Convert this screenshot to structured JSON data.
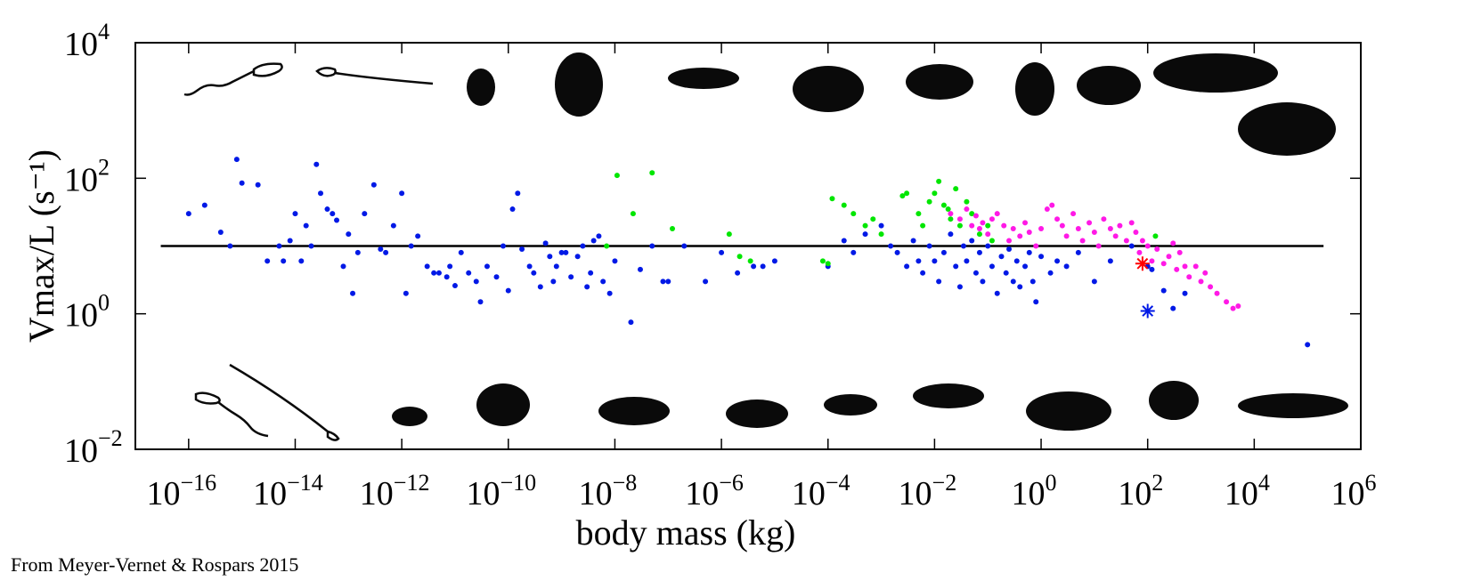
{
  "credit": "From Meyer-Vernet & Rospars 2015",
  "chart_data": {
    "type": "scatter",
    "xlabel": "body mass (kg)",
    "ylabel": "Vmax/L (s⁻¹)",
    "x_scale": "log",
    "y_scale": "log",
    "xlim": [
      1e-17,
      1000000.0
    ],
    "ylim": [
      0.01,
      10000
    ],
    "x_ticks": [
      {
        "base": "10",
        "exp": "−16"
      },
      {
        "base": "10",
        "exp": "−14"
      },
      {
        "base": "10",
        "exp": "−12"
      },
      {
        "base": "10",
        "exp": "−10"
      },
      {
        "base": "10",
        "exp": "−8"
      },
      {
        "base": "10",
        "exp": "−6"
      },
      {
        "base": "10",
        "exp": "−4"
      },
      {
        "base": "10",
        "exp": "−2"
      },
      {
        "base": "10",
        "exp": "0"
      },
      {
        "base": "10",
        "exp": "2"
      },
      {
        "base": "10",
        "exp": "4"
      },
      {
        "base": "10",
        "exp": "6"
      }
    ],
    "y_ticks": [
      {
        "base": "10",
        "exp": "−2"
      },
      {
        "base": "10",
        "exp": "0"
      },
      {
        "base": "10",
        "exp": "2"
      },
      {
        "base": "10",
        "exp": "4"
      }
    ],
    "grid": false,
    "reference_line": {
      "y": 10,
      "x_range": [
        3e-17,
        200000.0
      ],
      "color": "#000000"
    },
    "series": [
      {
        "color": "#0019e6",
        "points": [
          [
            1e-16,
            30
          ],
          [
            2e-16,
            40
          ],
          [
            4e-16,
            16
          ],
          [
            6e-16,
            10
          ],
          [
            8e-16,
            190
          ],
          [
            1e-15,
            85
          ],
          [
            2e-15,
            80
          ],
          [
            3e-15,
            6
          ],
          [
            5e-15,
            10
          ],
          [
            6e-15,
            6
          ],
          [
            8e-15,
            12
          ],
          [
            1e-14,
            30
          ],
          [
            1.3e-14,
            6
          ],
          [
            1.6e-14,
            20
          ],
          [
            2e-14,
            10
          ],
          [
            2.5e-14,
            160
          ],
          [
            3e-14,
            60
          ],
          [
            4e-14,
            35
          ],
          [
            5e-14,
            30
          ],
          [
            6e-14,
            24
          ],
          [
            8e-14,
            5
          ],
          [
            1e-13,
            15
          ],
          [
            1.2e-13,
            2
          ],
          [
            1.5e-13,
            8
          ],
          [
            2e-13,
            30
          ],
          [
            3e-13,
            80
          ],
          [
            4e-13,
            9
          ],
          [
            5e-13,
            8
          ],
          [
            7e-13,
            20
          ],
          [
            1e-12,
            60
          ],
          [
            1.2e-12,
            2
          ],
          [
            1.5e-12,
            10
          ],
          [
            2e-12,
            14
          ],
          [
            3e-12,
            5
          ],
          [
            4e-12,
            4
          ],
          [
            5e-12,
            4
          ],
          [
            7e-12,
            3.5
          ],
          [
            8e-12,
            5
          ],
          [
            1e-11,
            2.6
          ],
          [
            1.3e-11,
            8
          ],
          [
            1.8e-11,
            4
          ],
          [
            2.5e-11,
            3
          ],
          [
            3e-11,
            1.5
          ],
          [
            4e-11,
            5
          ],
          [
            6e-11,
            3.5
          ],
          [
            8e-11,
            10
          ],
          [
            1e-10,
            2.2
          ],
          [
            1.2e-10,
            35
          ],
          [
            1.5e-10,
            60
          ],
          [
            1.8e-10,
            9
          ],
          [
            2.5e-10,
            5
          ],
          [
            3e-10,
            4
          ],
          [
            4e-10,
            2.5
          ],
          [
            5e-10,
            11
          ],
          [
            6e-10,
            7
          ],
          [
            7e-10,
            3
          ],
          [
            8e-10,
            5
          ],
          [
            1e-09,
            8
          ],
          [
            1.2e-09,
            8
          ],
          [
            1.5e-09,
            3.5
          ],
          [
            2e-09,
            7
          ],
          [
            2.5e-09,
            10
          ],
          [
            3e-09,
            2.5
          ],
          [
            3.5e-09,
            4
          ],
          [
            4e-09,
            12
          ],
          [
            5e-09,
            14
          ],
          [
            6e-09,
            3
          ],
          [
            8e-09,
            2
          ],
          [
            1e-08,
            6
          ],
          [
            2e-08,
            0.75
          ],
          [
            3e-08,
            4.5
          ],
          [
            5e-08,
            10
          ],
          [
            8e-08,
            3
          ],
          [
            1e-07,
            3
          ],
          [
            2e-07,
            10
          ],
          [
            5e-07,
            3
          ],
          [
            1e-06,
            8
          ],
          [
            2e-06,
            4
          ],
          [
            4e-06,
            5
          ],
          [
            6e-06,
            5
          ],
          [
            1e-05,
            6
          ],
          [
            0.0001,
            5
          ],
          [
            0.0002,
            12
          ],
          [
            0.0003,
            8
          ],
          [
            0.0005,
            15
          ],
          [
            0.001,
            20
          ],
          [
            0.0015,
            10
          ],
          [
            0.002,
            8
          ],
          [
            0.003,
            5
          ],
          [
            0.004,
            12
          ],
          [
            0.005,
            6
          ],
          [
            0.006,
            4
          ],
          [
            0.008,
            10
          ],
          [
            0.01,
            6
          ],
          [
            0.012,
            3
          ],
          [
            0.015,
            8
          ],
          [
            0.02,
            15
          ],
          [
            0.025,
            5
          ],
          [
            0.03,
            2.5
          ],
          [
            0.035,
            10
          ],
          [
            0.04,
            6
          ],
          [
            0.05,
            12
          ],
          [
            0.06,
            4
          ],
          [
            0.07,
            8
          ],
          [
            0.08,
            3
          ],
          [
            0.1,
            10
          ],
          [
            0.12,
            5
          ],
          [
            0.15,
            2
          ],
          [
            0.18,
            7
          ],
          [
            0.22,
            4
          ],
          [
            0.25,
            9
          ],
          [
            0.3,
            3
          ],
          [
            0.35,
            6
          ],
          [
            0.4,
            2.5
          ],
          [
            0.5,
            5
          ],
          [
            0.6,
            8
          ],
          [
            0.7,
            3
          ],
          [
            0.8,
            1.5
          ],
          [
            1,
            7
          ],
          [
            1.5,
            4
          ],
          [
            2,
            6
          ],
          [
            3,
            5
          ],
          [
            5,
            8
          ],
          [
            10.0,
            3
          ],
          [
            20.0,
            6
          ],
          [
            50.0,
            10
          ],
          [
            100.0,
            5
          ],
          [
            120.0,
            4.5
          ],
          [
            200.0,
            2.2
          ],
          [
            300.0,
            1.2
          ],
          [
            500.0,
            2
          ],
          [
            100000.0,
            0.35
          ]
        ]
      },
      {
        "color": "#00e600",
        "points": [
          [
            7e-09,
            10
          ],
          [
            1.1e-08,
            110
          ],
          [
            2.2e-08,
            30
          ],
          [
            5e-08,
            120
          ],
          [
            1.2e-07,
            18
          ],
          [
            1.4e-06,
            15
          ],
          [
            2.2e-06,
            7
          ],
          [
            3.5e-06,
            6
          ],
          [
            8e-05,
            6
          ],
          [
            0.0001,
            5.5
          ],
          [
            0.00012,
            50
          ],
          [
            0.0002,
            40
          ],
          [
            0.0003,
            30
          ],
          [
            0.0005,
            20
          ],
          [
            0.0007,
            25
          ],
          [
            0.001,
            15
          ],
          [
            0.0025,
            55
          ],
          [
            0.003,
            60
          ],
          [
            0.005,
            30
          ],
          [
            0.006,
            20
          ],
          [
            0.008,
            45
          ],
          [
            0.01,
            60
          ],
          [
            0.012,
            90
          ],
          [
            0.015,
            40
          ],
          [
            0.018,
            35
          ],
          [
            0.02,
            25
          ],
          [
            0.025,
            70
          ],
          [
            0.03,
            20
          ],
          [
            0.04,
            45
          ],
          [
            0.05,
            30
          ],
          [
            0.07,
            15
          ],
          [
            0.1,
            20
          ],
          [
            0.12,
            12
          ],
          [
            140.0,
            14
          ]
        ]
      },
      {
        "color": "#ff19e6",
        "points": [
          [
            0.02,
            30
          ],
          [
            0.03,
            25
          ],
          [
            0.04,
            35
          ],
          [
            0.05,
            20
          ],
          [
            0.06,
            28
          ],
          [
            0.07,
            18
          ],
          [
            0.08,
            22
          ],
          [
            0.1,
            15
          ],
          [
            0.12,
            25
          ],
          [
            0.15,
            30
          ],
          [
            0.2,
            20
          ],
          [
            0.25,
            12
          ],
          [
            0.3,
            18
          ],
          [
            0.4,
            14
          ],
          [
            0.5,
            22
          ],
          [
            0.6,
            16
          ],
          [
            0.8,
            10
          ],
          [
            1,
            18
          ],
          [
            1.3,
            35
          ],
          [
            1.6,
            40
          ],
          [
            2,
            25
          ],
          [
            2.5,
            20
          ],
          [
            3,
            14
          ],
          [
            4,
            30
          ],
          [
            5,
            18
          ],
          [
            6,
            12
          ],
          [
            8,
            22
          ],
          [
            10.0,
            16
          ],
          [
            12.0,
            10
          ],
          [
            15.0,
            25
          ],
          [
            20.0,
            18
          ],
          [
            25.0,
            14
          ],
          [
            30.0,
            20
          ],
          [
            40.0,
            12
          ],
          [
            50.0,
            22
          ],
          [
            60.0,
            16
          ],
          [
            70.0,
            8
          ],
          [
            80.0,
            12
          ],
          [
            100.0,
            10
          ],
          [
            120.0,
            6
          ],
          [
            150.0,
            9
          ],
          [
            200.0,
            5.5
          ],
          [
            250.0,
            7
          ],
          [
            300.0,
            11
          ],
          [
            350.0,
            4.5
          ],
          [
            400.0,
            8
          ],
          [
            500.0,
            5
          ],
          [
            600.0,
            3.5
          ],
          [
            800.0,
            5
          ],
          [
            1000.0,
            3
          ],
          [
            1200.0,
            4
          ],
          [
            1500.0,
            2.5
          ],
          [
            2000.0,
            2
          ],
          [
            3000.0,
            1.5
          ],
          [
            4000.0,
            1.2
          ],
          [
            5000.0,
            1.3
          ]
        ]
      }
    ],
    "highlights": [
      {
        "x": 80,
        "y": 5.5,
        "color": "#ff0000",
        "marker": "asterisk"
      },
      {
        "x": 100,
        "y": 1.1,
        "color": "#0019e6",
        "marker": "asterisk"
      }
    ]
  }
}
